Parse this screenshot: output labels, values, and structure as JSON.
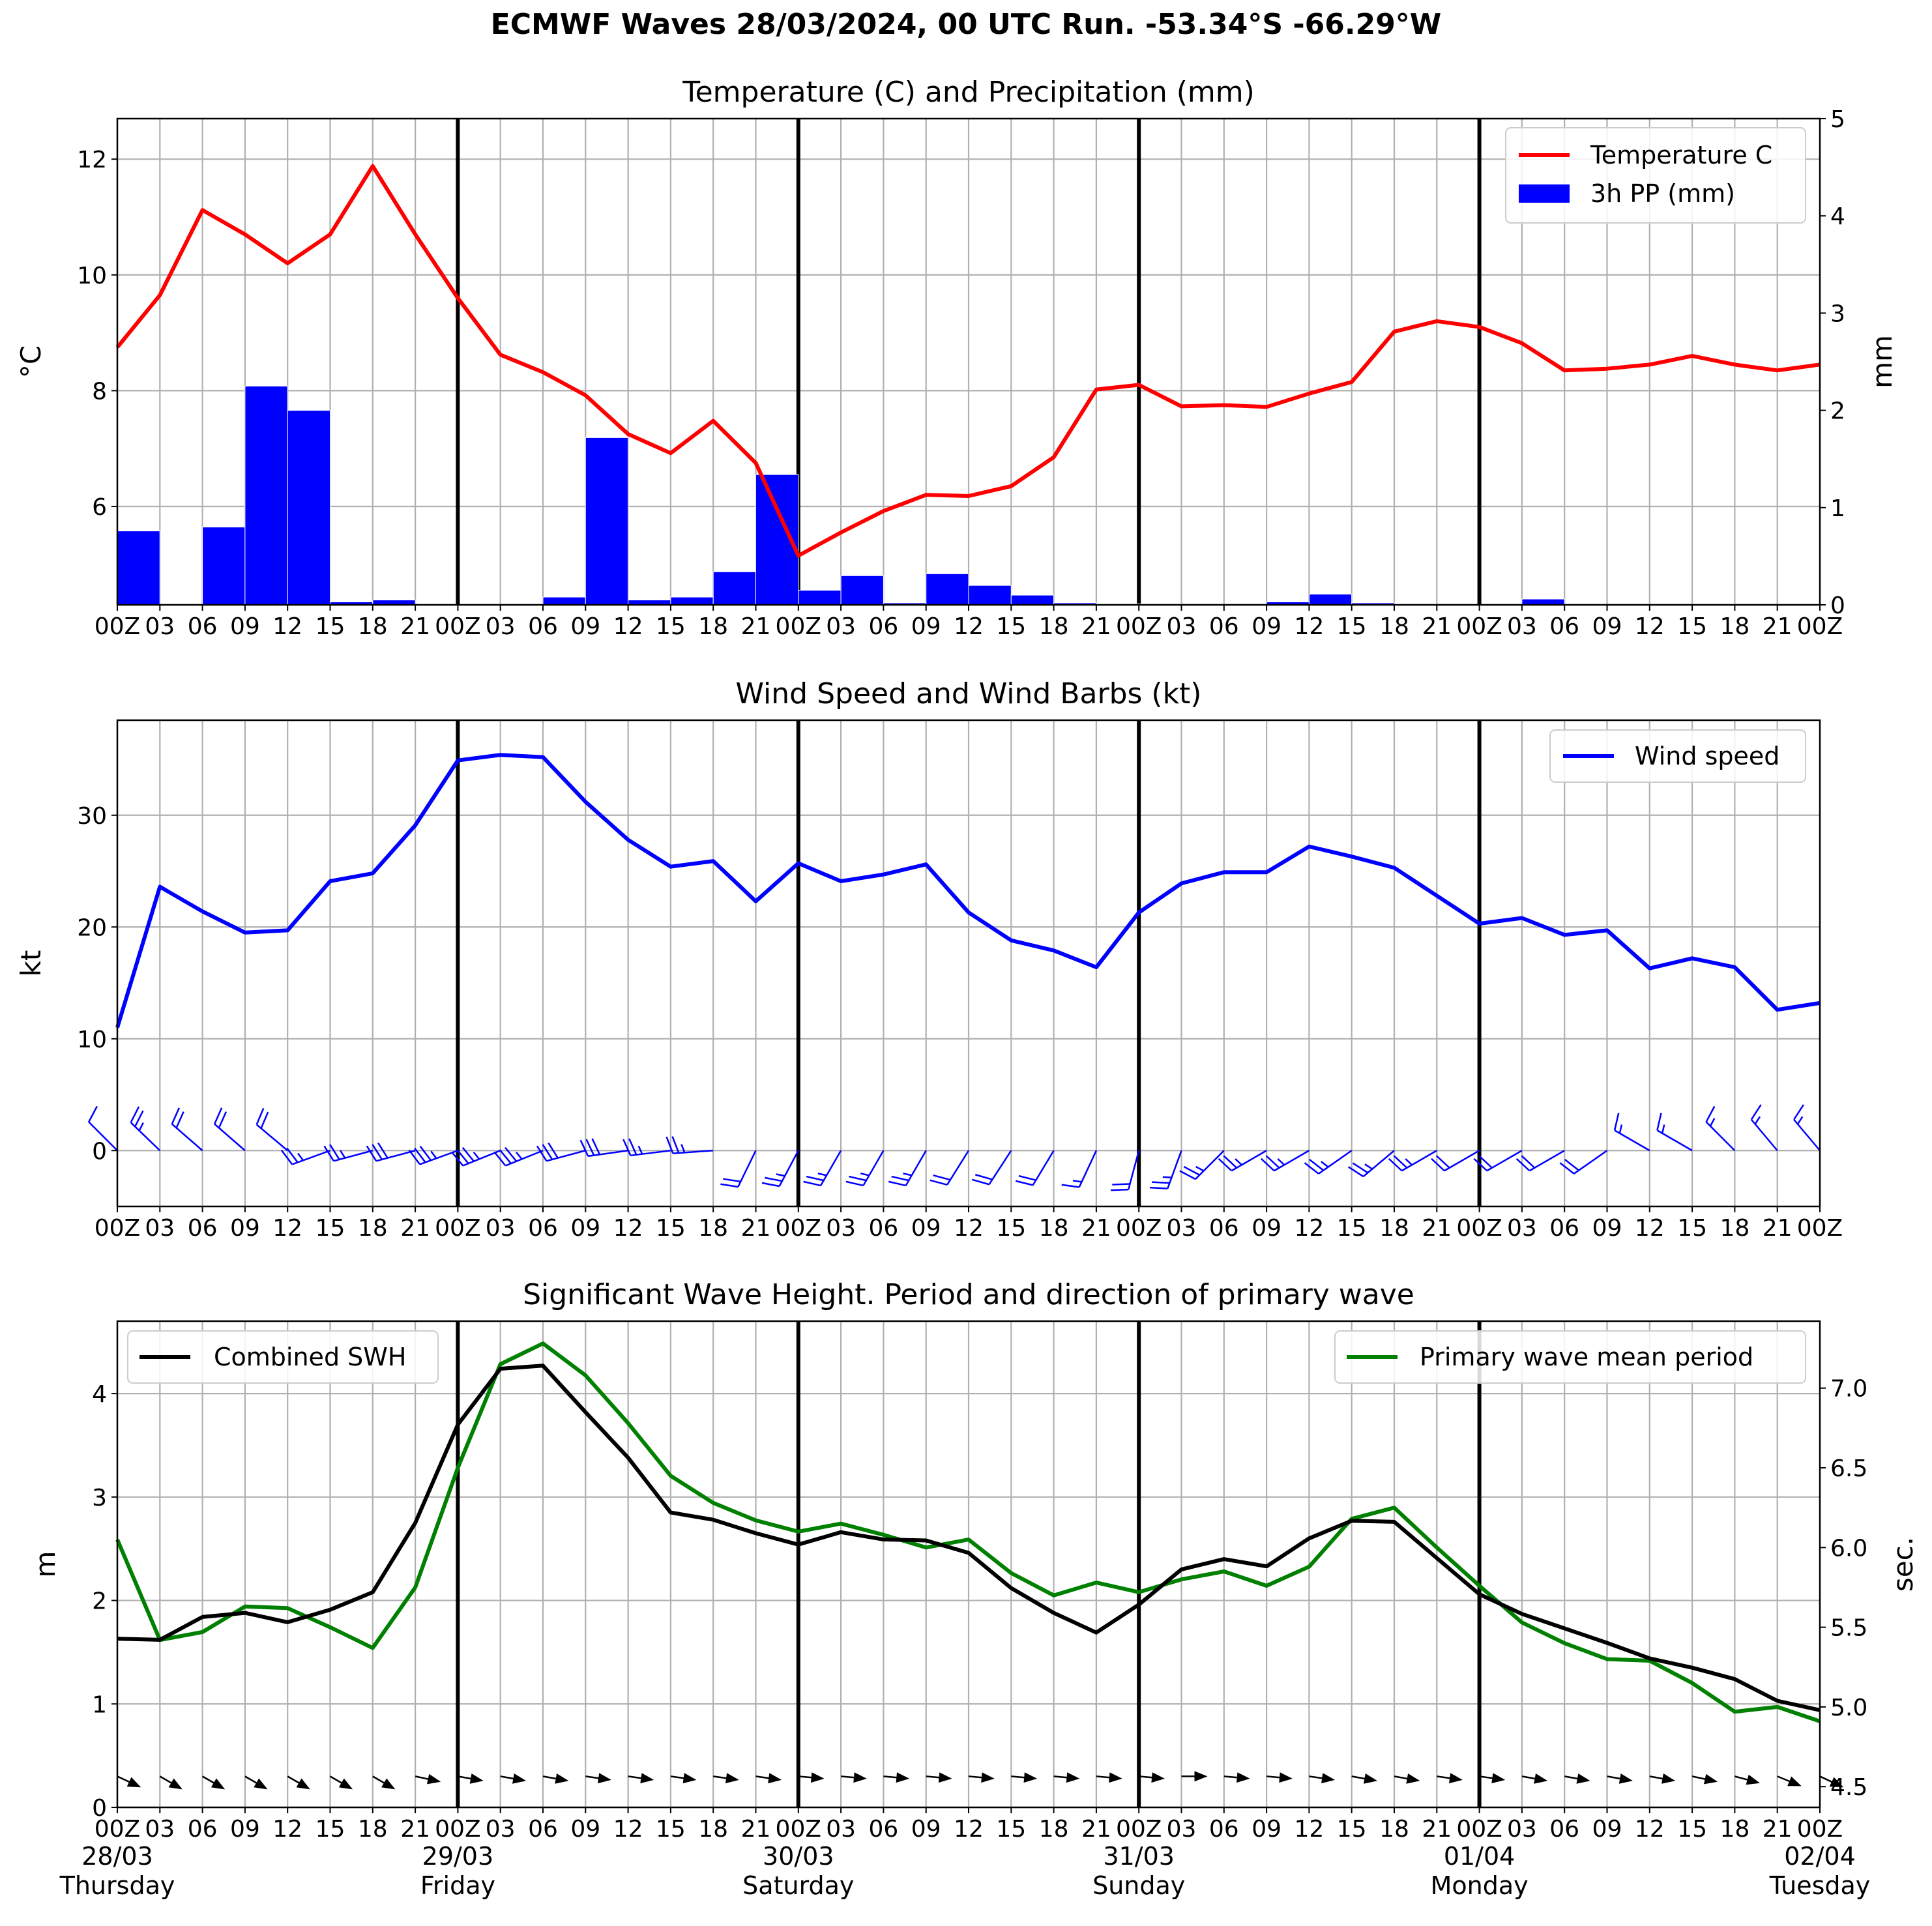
{
  "page_title": "ECMWF Waves 28/03/2024, 00 UTC Run. -53.34°S -66.29°W",
  "x_tick_labels": [
    "00Z",
    "03",
    "06",
    "09",
    "12",
    "15",
    "18",
    "21",
    "00Z",
    "03",
    "06",
    "09",
    "12",
    "15",
    "18",
    "21",
    "00Z",
    "03",
    "06",
    "09",
    "12",
    "15",
    "18",
    "21",
    "00Z",
    "03",
    "06",
    "09",
    "12",
    "15",
    "18",
    "21",
    "00Z",
    "03",
    "06",
    "09",
    "12",
    "15",
    "18",
    "21",
    "00Z"
  ],
  "day_labels": [
    {
      "date": "28/03",
      "day": "Thursday",
      "index": 0
    },
    {
      "date": "29/03",
      "day": "Friday",
      "index": 8
    },
    {
      "date": "30/03",
      "day": "Saturday",
      "index": 16
    },
    {
      "date": "31/03",
      "day": "Sunday",
      "index": 24
    },
    {
      "date": "01/04",
      "day": "Monday",
      "index": 32
    },
    {
      "date": "02/04",
      "day": "Tuesday",
      "index": 40
    }
  ],
  "chart_data": [
    {
      "type": "line+bar",
      "title": "Temperature (C) and Precipitation (mm)",
      "ylabel": "°C",
      "ylabel_right": "mm",
      "ylim": [
        4.3,
        12.7
      ],
      "ylim_right": [
        0,
        5
      ],
      "yticks": [
        6,
        8,
        10,
        12
      ],
      "yticks_right": [
        0,
        1,
        2,
        3,
        4,
        5
      ],
      "grid": true,
      "legend_position": "top-right",
      "series": [
        {
          "name": "Temperature C",
          "kind": "line",
          "axis": "left",
          "color": "#ff0000",
          "values": [
            8.75,
            9.65,
            11.12,
            10.7,
            10.2,
            10.7,
            11.88,
            10.7,
            9.6,
            8.62,
            8.32,
            7.92,
            7.25,
            6.92,
            7.48,
            6.75,
            5.15,
            5.55,
            5.92,
            6.2,
            6.18,
            6.35,
            6.85,
            8.02,
            8.1,
            7.73,
            7.75,
            7.72,
            7.95,
            8.15,
            9.02,
            9.2,
            9.1,
            8.82,
            8.35,
            8.38,
            8.45,
            8.6,
            8.45,
            8.35,
            8.45
          ]
        },
        {
          "name": "3h PP (mm)",
          "kind": "bar",
          "axis": "right",
          "color": "#0000ff",
          "values": [
            0.76,
            0,
            0.8,
            2.25,
            2.0,
            0.03,
            0.05,
            0,
            0,
            0,
            0.08,
            1.72,
            0.05,
            0.08,
            0.34,
            1.34,
            0.15,
            0.3,
            0.02,
            0.32,
            0.2,
            0.1,
            0.02,
            0.01,
            0.01,
            0,
            0,
            0.03,
            0.11,
            0.02,
            0,
            0,
            0,
            0.06,
            0,
            0,
            0,
            0,
            0,
            0
          ]
        }
      ]
    },
    {
      "type": "line",
      "title": "Wind Speed and Wind Barbs (kt)",
      "ylabel": "kt",
      "ylim": [
        -5,
        38.5
      ],
      "yticks": [
        0,
        10,
        20,
        30
      ],
      "grid": true,
      "legend_position": "top-right",
      "series": [
        {
          "name": "Wind speed",
          "color": "#0000ff",
          "values": [
            11.0,
            23.6,
            21.4,
            19.5,
            19.7,
            24.1,
            24.8,
            29.1,
            34.9,
            35.4,
            35.2,
            31.2,
            27.8,
            25.4,
            25.9,
            22.3,
            25.7,
            24.1,
            24.7,
            25.6,
            21.3,
            18.8,
            17.9,
            16.4,
            21.3,
            23.9,
            24.9,
            24.9,
            27.2,
            26.3,
            25.3,
            22.8,
            20.3,
            20.8,
            19.3,
            19.7,
            16.3,
            17.2,
            16.4,
            12.6,
            13.2
          ]
        }
      ],
      "wind_barbs": {
        "color": "#0000ff",
        "direction_deg": [
          315,
          314,
          311,
          311,
          310,
          250,
          255,
          255,
          250,
          248,
          248,
          255,
          262,
          263,
          266,
          206,
          208,
          210,
          210,
          210,
          212,
          213,
          211,
          205,
          195,
          200,
          225,
          240,
          240,
          235,
          230,
          240,
          240,
          240,
          240,
          235,
          300,
          300,
          315,
          320,
          320
        ]
      }
    },
    {
      "type": "line",
      "title": "Significant Wave Height. Period and direction of primary wave",
      "ylabel": "m",
      "ylabel_right": "sec.",
      "ylim": [
        0,
        4.7
      ],
      "ylim_right": [
        4.37,
        7.42
      ],
      "yticks": [
        0,
        1,
        2,
        3,
        4
      ],
      "yticks_right": [
        4.5,
        5.0,
        5.5,
        6.0,
        6.5,
        7.0
      ],
      "grid": true,
      "series": [
        {
          "name": "Combined SWH",
          "axis": "left",
          "color": "#000000",
          "legend_position": "top-left",
          "values": [
            1.63,
            1.62,
            1.84,
            1.88,
            1.79,
            1.91,
            2.08,
            2.75,
            3.7,
            4.24,
            4.27,
            3.82,
            3.38,
            2.85,
            2.78,
            2.65,
            2.54,
            2.66,
            2.59,
            2.58,
            2.46,
            2.12,
            1.88,
            1.69,
            1.96,
            2.3,
            2.4,
            2.33,
            2.6,
            2.77,
            2.76,
            2.41,
            2.06,
            1.87,
            1.73,
            1.59,
            1.44,
            1.35,
            1.24,
            1.03,
            0.94
          ]
        },
        {
          "name": "Primary wave mean period",
          "axis": "right",
          "color": "#008000",
          "legend_position": "top-right",
          "values": [
            6.05,
            5.42,
            5.47,
            5.63,
            5.62,
            5.5,
            5.37,
            5.75,
            6.5,
            7.15,
            7.28,
            7.08,
            6.78,
            6.45,
            6.28,
            6.17,
            6.1,
            6.15,
            6.08,
            6.0,
            6.05,
            5.84,
            5.7,
            5.78,
            5.72,
            5.8,
            5.85,
            5.76,
            5.88,
            6.18,
            6.25,
            6.0,
            5.76,
            5.53,
            5.4,
            5.3,
            5.29,
            5.15,
            4.97,
            5.0,
            4.91
          ]
        }
      ],
      "wave_arrows": {
        "color": "#000000",
        "direction_deg": [
          295,
          300,
          300,
          300,
          300,
          300,
          300,
          282,
          280,
          280,
          280,
          278,
          278,
          278,
          278,
          278,
          275,
          275,
          275,
          275,
          275,
          275,
          275,
          275,
          275,
          270,
          275,
          275,
          278,
          280,
          280,
          278,
          278,
          280,
          280,
          280,
          280,
          282,
          285,
          292,
          295
        ]
      }
    }
  ]
}
